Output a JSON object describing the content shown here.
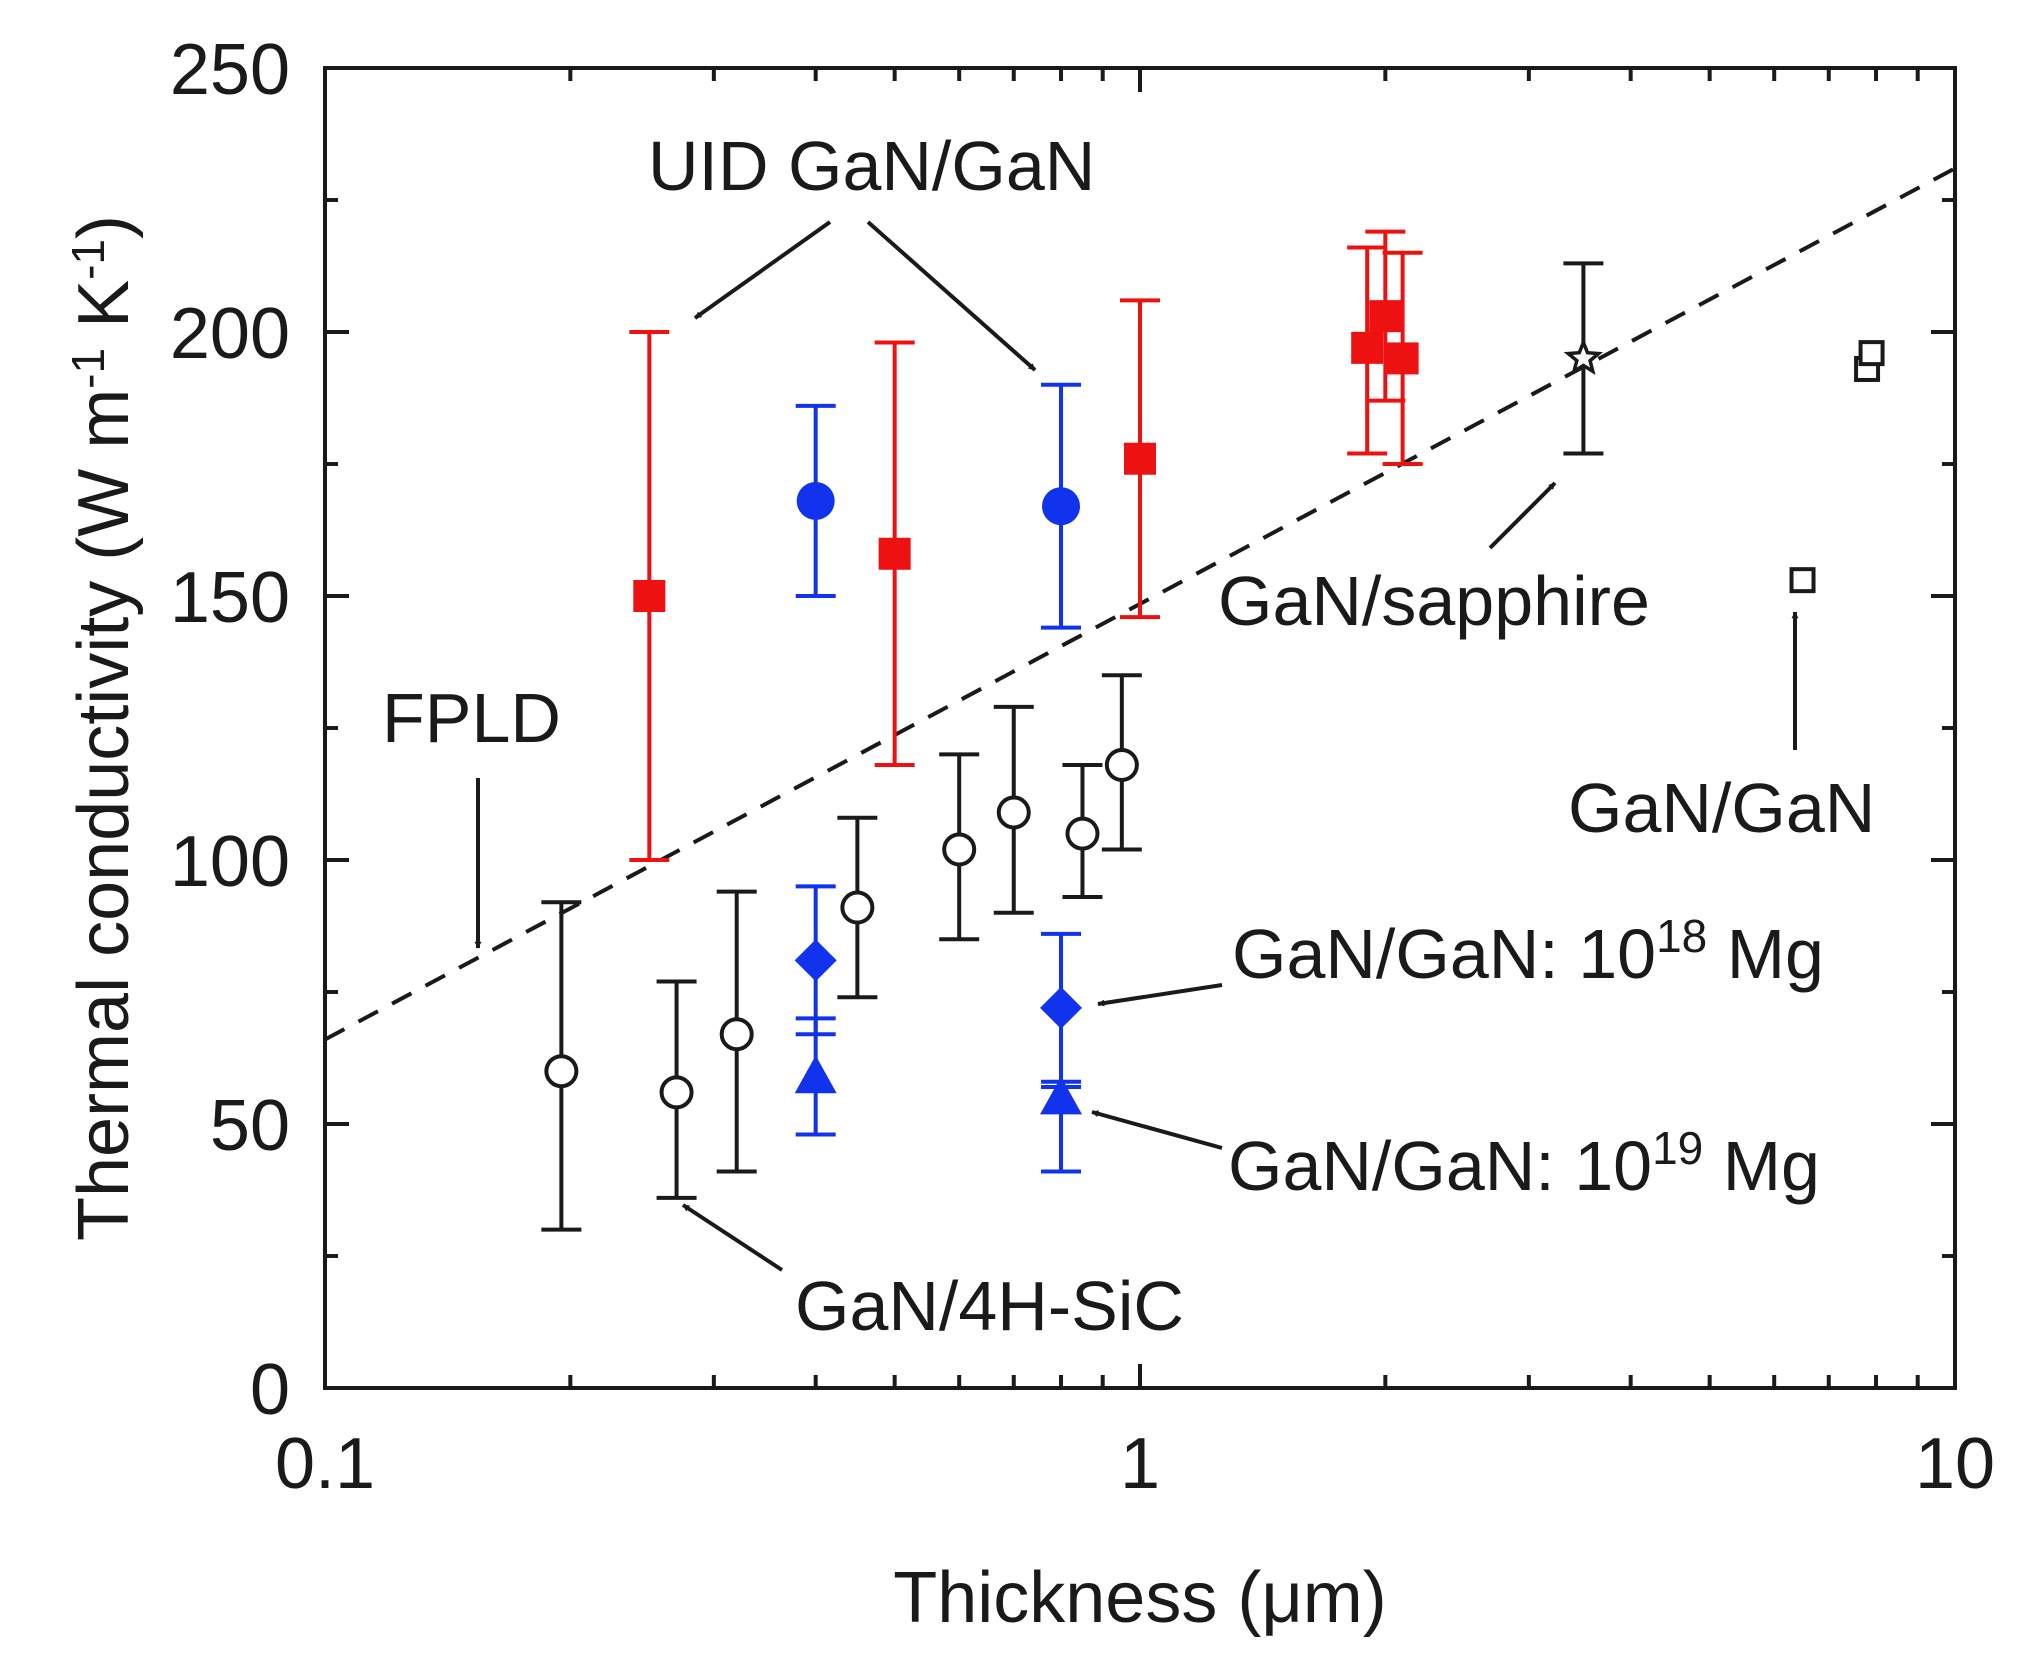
{
  "chart_data": {
    "type": "scatter",
    "xscale": "log",
    "xlim": [
      0.1,
      10
    ],
    "ylim": [
      0,
      250
    ],
    "xlabel": "Thickness (μm)",
    "ylabel_parts": [
      "Thermal conductivity (W m",
      "-1",
      " K",
      "-1",
      ")"
    ],
    "xticks": [
      0.1,
      1,
      10
    ],
    "xtick_labels": [
      "0.1",
      "1",
      "10"
    ],
    "yticks": [
      0,
      50,
      100,
      150,
      200,
      250
    ],
    "ytick_labels": [
      "0",
      "50",
      "100",
      "150",
      "200",
      "250"
    ],
    "colors": {
      "red": "#ee1111",
      "blue": "#1133ee",
      "black": "#1a1a1a"
    },
    "fpld_line": {
      "x": [
        0.1,
        10
      ],
      "y": [
        66,
        231
      ]
    },
    "series": [
      {
        "name": "UID GaN/GaN",
        "marker": "square-filled",
        "color": "red",
        "points": [
          {
            "x": 0.25,
            "y": 150,
            "err_lo": 100,
            "err_hi": 200
          },
          {
            "x": 0.5,
            "y": 158,
            "err_lo": 118,
            "err_hi": 198
          },
          {
            "x": 1.0,
            "y": 176,
            "err_lo": 146,
            "err_hi": 206
          },
          {
            "x": 1.9,
            "y": 197,
            "err_lo": 177,
            "err_hi": 216
          },
          {
            "x": 2.0,
            "y": 203,
            "err_lo": 187,
            "err_hi": 219
          },
          {
            "x": 2.1,
            "y": 195,
            "err_lo": 175,
            "err_hi": 215
          }
        ]
      },
      {
        "name": "UID GaN/GaN",
        "marker": "circle-filled",
        "color": "blue",
        "points": [
          {
            "x": 0.4,
            "y": 168,
            "err_lo": 150,
            "err_hi": 186
          },
          {
            "x": 0.8,
            "y": 167,
            "err_lo": 144,
            "err_hi": 190
          }
        ]
      },
      {
        "name": "GaN/GaN: 10^18 Mg",
        "marker": "diamond-filled",
        "color": "blue",
        "points": [
          {
            "x": 0.4,
            "y": 81,
            "err_lo": 67,
            "err_hi": 95
          },
          {
            "x": 0.8,
            "y": 72,
            "err_lo": 58,
            "err_hi": 86
          }
        ]
      },
      {
        "name": "GaN/GaN: 10^19 Mg",
        "marker": "triangle-filled",
        "color": "blue",
        "points": [
          {
            "x": 0.4,
            "y": 59,
            "err_lo": 48,
            "err_hi": 70
          },
          {
            "x": 0.8,
            "y": 55,
            "err_lo": 41,
            "err_hi": 57
          }
        ]
      },
      {
        "name": "GaN/4H-SiC",
        "marker": "circle-open",
        "color": "black",
        "points": [
          {
            "x": 0.195,
            "y": 60,
            "err_lo": 30,
            "err_hi": 92
          },
          {
            "x": 0.27,
            "y": 56,
            "err_lo": 36,
            "err_hi": 77
          },
          {
            "x": 0.32,
            "y": 67,
            "err_lo": 41,
            "err_hi": 94
          },
          {
            "x": 0.45,
            "y": 91,
            "err_lo": 74,
            "err_hi": 108
          },
          {
            "x": 0.6,
            "y": 102,
            "err_lo": 85,
            "err_hi": 120
          },
          {
            "x": 0.7,
            "y": 109,
            "err_lo": 90,
            "err_hi": 129
          },
          {
            "x": 0.85,
            "y": 105,
            "err_lo": 93,
            "err_hi": 118
          },
          {
            "x": 0.95,
            "y": 118,
            "err_lo": 102,
            "err_hi": 135
          }
        ]
      },
      {
        "name": "GaN/sapphire",
        "marker": "star-open",
        "color": "black",
        "points": [
          {
            "x": 3.5,
            "y": 195,
            "err_lo": 177,
            "err_hi": 213
          }
        ]
      },
      {
        "name": "GaN/GaN",
        "marker": "square-open",
        "color": "black",
        "points": [
          {
            "x": 6.5,
            "y": 153
          },
          {
            "x": 7.8,
            "y": 193
          },
          {
            "x": 7.9,
            "y": 196
          }
        ]
      }
    ],
    "annotations": {
      "uid": "UID GaN/GaN",
      "fpld": "FPLD",
      "sapphire": "GaN/sapphire",
      "gangan": "GaN/GaN",
      "mg18_prefix": "GaN/GaN: 10",
      "mg18_exp": "18",
      "mg18_suffix": " Mg",
      "mg19_prefix": "GaN/GaN: 10",
      "mg19_exp": "19",
      "mg19_suffix": " Mg",
      "sic": "GaN/4H-SiC"
    }
  }
}
